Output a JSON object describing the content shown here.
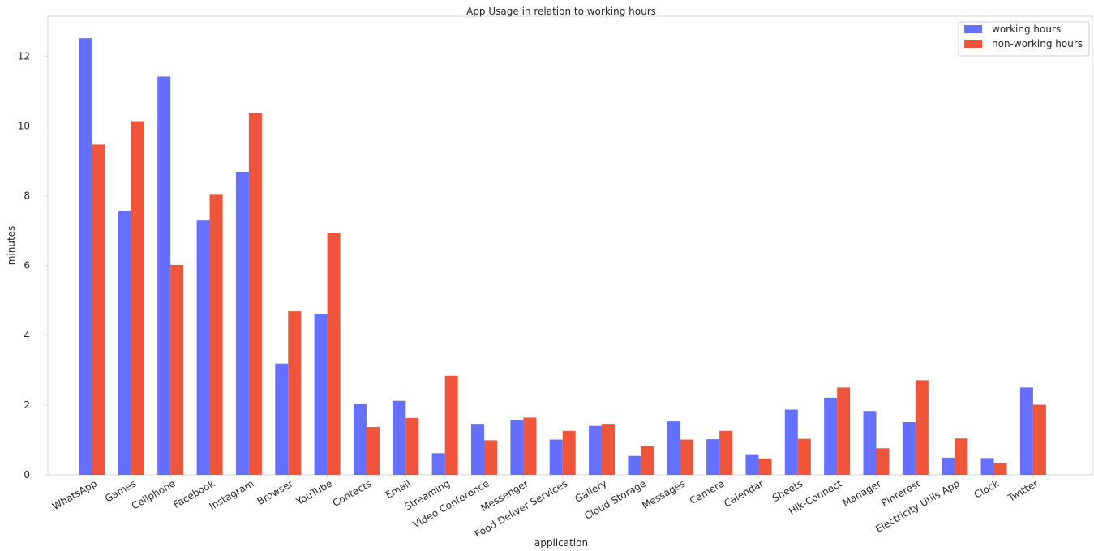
{
  "chart_data": {
    "type": "bar",
    "title": "App Usage in relation to working hours",
    "xlabel": "application",
    "ylabel": "minutes",
    "ylim": [
      0,
      13.15
    ],
    "yticks": [
      0,
      2,
      4,
      6,
      8,
      10,
      12
    ],
    "grid": false,
    "legend_position": "top-right",
    "categories": [
      "WhatsApp",
      "Games",
      "Cellphone",
      "Facebook",
      "Instagram",
      "Browser",
      "YouTube",
      "Contacts",
      "Email",
      "Streaming",
      "Video Conference",
      "Messenger",
      "Food Deliver Services",
      "Gallery",
      "Cloud Storage",
      "Messages",
      "Camera",
      "Calendar",
      "Sheets",
      "Hik-Connect",
      "Manager",
      "Pinterest",
      "Electricity Utils App",
      "Clock",
      "Twitter"
    ],
    "series": [
      {
        "name": "working hours",
        "color": "#6670ff",
        "values": [
          12.52,
          7.57,
          11.42,
          7.29,
          8.69,
          3.19,
          4.62,
          2.04,
          2.12,
          0.62,
          1.46,
          1.58,
          1.01,
          1.4,
          0.54,
          1.53,
          1.02,
          0.59,
          1.87,
          2.21,
          1.83,
          1.51,
          0.49,
          0.48,
          2.5
        ]
      },
      {
        "name": "non-working hours",
        "color": "#ee553b",
        "values": [
          9.47,
          10.14,
          6.02,
          8.03,
          10.37,
          4.69,
          6.93,
          1.37,
          1.63,
          2.84,
          0.99,
          1.64,
          1.26,
          1.46,
          0.82,
          1.01,
          1.26,
          0.47,
          1.03,
          2.5,
          0.76,
          2.71,
          1.04,
          0.33,
          2.01
        ]
      }
    ]
  }
}
